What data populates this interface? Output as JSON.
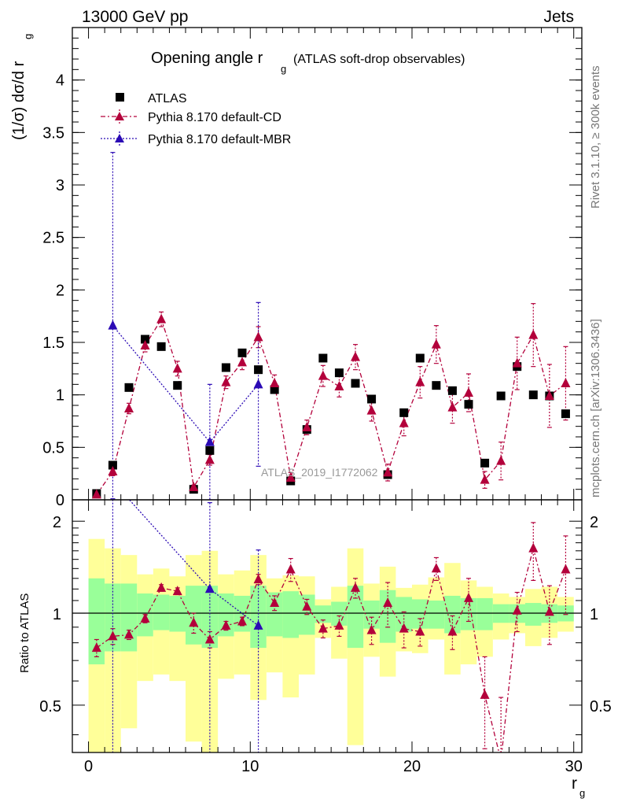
{
  "header": {
    "left": "13000 GeV pp",
    "right": "Jets"
  },
  "side_labels": {
    "rivet": "Rivet 3.1.10, ≥ 300k events",
    "mcplots": "mcplots.cern.ch [arXiv:1306.3436]"
  },
  "watermark": "ATLAS_2019_I1772062",
  "chart_data": {
    "type": "scatter",
    "title": "Opening angle r_g (ATLAS soft-drop observables)",
    "xlabel": "r_g",
    "ylabel_main": "(1/σ) dσ/d r_g",
    "ylabel_ratio": "Ratio to ATLAS",
    "xlim": [
      -1,
      30.5
    ],
    "ylim_main": [
      0,
      4.5
    ],
    "ylim_ratio": [
      0.35,
      2.35
    ],
    "x_ticks": [
      0,
      10,
      20,
      30
    ],
    "y_ticks_main": [
      0,
      0.5,
      1,
      1.5,
      2,
      2.5,
      3,
      3.5,
      4
    ],
    "y_ticks_ratio": [
      0.5,
      1,
      2
    ],
    "legend": [
      {
        "label": "ATLAS",
        "color": "#000000",
        "marker": "square"
      },
      {
        "label": "Pythia 8.170 default-CD",
        "color": "#b3003b",
        "marker": "triangle",
        "dash": "dashdot"
      },
      {
        "label": "Pythia 8.170 default-MBR",
        "color": "#2b0ab5",
        "marker": "triangle",
        "dash": "dotted"
      }
    ],
    "x": [
      0.5,
      1.5,
      2.5,
      3.5,
      4.5,
      5.5,
      6.5,
      7.5,
      8.5,
      9.5,
      10.5,
      11.5,
      12.5,
      13.5,
      14.5,
      15.5,
      16.5,
      17.5,
      18.5,
      19.5,
      20.5,
      21.5,
      22.5,
      23.5,
      24.5,
      25.5,
      26.5,
      27.5,
      28.5,
      29.5
    ],
    "atlas": [
      0.06,
      0.33,
      1.07,
      1.53,
      1.46,
      1.09,
      0.1,
      0.47,
      1.26,
      1.4,
      1.24,
      1.05,
      0.18,
      0.67,
      1.35,
      1.21,
      1.11,
      0.96,
      0.24,
      0.83,
      1.35,
      1.09,
      1.04,
      0.91,
      0.35,
      0.99,
      1.27,
      1.0,
      0.99,
      0.82
    ],
    "atlas_err": [
      0.01,
      0.02,
      0.02,
      0.03,
      0.03,
      0.03,
      0.01,
      0.02,
      0.03,
      0.03,
      0.03,
      0.03,
      0.01,
      0.02,
      0.03,
      0.03,
      0.03,
      0.03,
      0.01,
      0.02,
      0.03,
      0.03,
      0.03,
      0.03,
      0.01,
      0.03,
      0.03,
      0.03,
      0.03,
      0.03
    ],
    "cd": [
      0.05,
      0.27,
      0.87,
      1.47,
      1.72,
      1.25,
      0.12,
      0.38,
      1.12,
      1.31,
      1.55,
      1.11,
      0.21,
      0.69,
      1.18,
      1.08,
      1.36,
      0.85,
      0.26,
      0.73,
      1.12,
      1.48,
      0.88,
      1.02,
      0.19,
      0.37,
      1.3,
      1.57,
      0.99,
      1.11
    ],
    "cd_err": [
      0.01,
      0.04,
      0.05,
      0.06,
      0.07,
      0.07,
      0.02,
      0.05,
      0.06,
      0.07,
      0.1,
      0.08,
      0.05,
      0.07,
      0.1,
      0.1,
      0.12,
      0.1,
      0.08,
      0.12,
      0.15,
      0.18,
      0.15,
      0.18,
      0.08,
      0.18,
      0.25,
      0.3,
      0.3,
      0.35
    ],
    "mbr_x": [
      1.5,
      7.5,
      10.5
    ],
    "mbr": [
      1.66,
      0.55,
      1.1
    ],
    "mbr_err": [
      1.65,
      0.55,
      0.78
    ],
    "ratio_cd": [
      0.77,
      0.84,
      0.85,
      0.96,
      1.21,
      1.18,
      0.93,
      0.82,
      0.91,
      0.94,
      1.29,
      1.08,
      1.39,
      1.05,
      0.89,
      0.91,
      1.21,
      0.88,
      1.08,
      0.89,
      0.87,
      1.4,
      0.87,
      1.12,
      0.54,
      0.33,
      1.02,
      1.63,
      1.01,
      1.39
    ],
    "ratio_cd_err": [
      0.05,
      0.05,
      0.03,
      0.03,
      0.03,
      0.03,
      0.07,
      0.05,
      0.03,
      0.03,
      0.05,
      0.06,
      0.12,
      0.06,
      0.06,
      0.07,
      0.09,
      0.09,
      0.18,
      0.12,
      0.09,
      0.12,
      0.11,
      0.18,
      0.18,
      0.2,
      0.15,
      0.35,
      0.22,
      0.4
    ],
    "ratio_mbr": [
      2.7,
      1.2,
      0.91
    ],
    "ratio_mbr_err": [
      2.5,
      1.1,
      0.7
    ],
    "bands": {
      "green_lo": [
        0.68,
        0.75,
        0.75,
        0.84,
        0.88,
        0.87,
        0.79,
        0.77,
        0.84,
        0.87,
        0.77,
        0.84,
        0.83,
        0.85,
        0.93,
        0.91,
        0.77,
        0.89,
        0.8,
        0.87,
        0.89,
        0.89,
        0.86,
        0.88,
        0.88,
        0.93,
        0.93,
        0.91,
        0.93,
        0.94
      ],
      "green_hi": [
        1.3,
        1.25,
        1.25,
        1.16,
        1.15,
        1.14,
        1.23,
        1.23,
        1.16,
        1.14,
        1.23,
        1.17,
        1.18,
        1.15,
        1.06,
        1.09,
        1.23,
        1.1,
        1.19,
        1.13,
        1.11,
        1.1,
        1.14,
        1.12,
        1.12,
        1.07,
        1.07,
        1.08,
        1.07,
        1.06
      ],
      "yellow_lo": [
        0.34,
        0.34,
        0.42,
        0.6,
        0.63,
        0.6,
        0.38,
        0.35,
        0.61,
        0.63,
        0.52,
        0.64,
        0.53,
        0.63,
        0.83,
        0.71,
        0.37,
        0.72,
        0.62,
        0.75,
        0.74,
        0.82,
        0.63,
        0.68,
        0.72,
        0.82,
        0.86,
        0.78,
        0.83,
        0.87
      ],
      "yellow_hi": [
        1.75,
        1.63,
        1.55,
        1.34,
        1.4,
        1.32,
        1.55,
        1.6,
        1.34,
        1.38,
        1.55,
        1.3,
        1.33,
        1.32,
        1.11,
        1.22,
        1.63,
        1.25,
        1.42,
        1.21,
        1.24,
        1.31,
        1.46,
        1.28,
        1.22,
        1.16,
        1.13,
        1.2,
        1.22,
        1.13
      ]
    }
  }
}
